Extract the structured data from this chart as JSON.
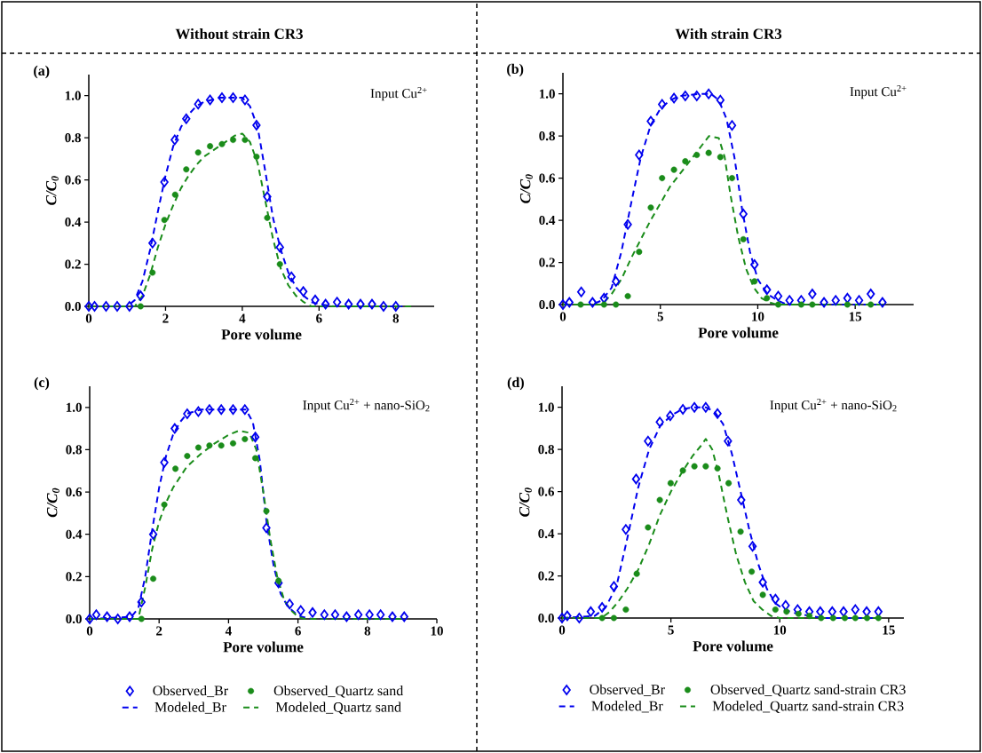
{
  "chart_data": [
    {
      "type": "scatter",
      "title": "Without strain CR3",
      "xlabel": "Pore volume",
      "ylabel": "C/C$_{0}$",
      "annotations": [
        "(a)",
        "Input Cu$^{2+}$"
      ],
      "xlim": [
        0,
        9
      ],
      "ylim": [
        0,
        1.1
      ],
      "xticks": [
        0,
        2,
        4,
        6,
        8
      ],
      "yticks": [
        {
          "value": 0,
          "label": "0.0"
        },
        {
          "value": 0.2,
          "label": "0.2"
        },
        {
          "value": 0.4,
          "label": "0.4"
        },
        {
          "value": 0.6,
          "label": "0.6"
        },
        {
          "value": 0.8,
          "label": "0.8"
        },
        {
          "value": 1.0,
          "label": "1.0"
        }
      ],
      "series": [
        {
          "color": "#0000ee",
          "marker": "diamond",
          "x": [
            0,
            0.15,
            0.45,
            0.74,
            1.06,
            1.35,
            1.66,
            1.97,
            2.24,
            2.54,
            2.85,
            3.16,
            3.47,
            3.76,
            4.07,
            4.37,
            4.65,
            4.98,
            5.28,
            5.59,
            5.9,
            6.17,
            6.47,
            6.77,
            7.08,
            7.38,
            7.68,
            8.0
          ],
          "values": [
            0,
            0,
            0,
            0,
            0,
            0.05,
            0.3,
            0.59,
            0.79,
            0.89,
            0.96,
            0.98,
            0.99,
            0.99,
            0.98,
            0.86,
            0.52,
            0.28,
            0.14,
            0.07,
            0.03,
            0.01,
            0.02,
            0.01,
            0.01,
            0.01,
            0,
            0
          ]
        },
        {
          "color": "#1a8c1a",
          "marker": "circle",
          "x": [
            1.35,
            1.66,
            1.97,
            2.25,
            2.54,
            2.85,
            3.16,
            3.47,
            3.76,
            4.07,
            4.37,
            4.65,
            4.98
          ],
          "values": [
            0,
            0.16,
            0.41,
            0.53,
            0.65,
            0.73,
            0.76,
            0.77,
            0.79,
            0.79,
            0.71,
            0.42,
            0.2
          ]
        },
        {
          "color": "#0000ee",
          "type": "line",
          "line_style": "dashed",
          "x": [
            0,
            1.0,
            1.2,
            1.4,
            1.6,
            1.8,
            2.0,
            2.2,
            2.4,
            2.6,
            2.8,
            3.0,
            3.4,
            4.0,
            4.2,
            4.4,
            4.6,
            4.8,
            5.0,
            5.2,
            5.4,
            5.6,
            5.8,
            6.0,
            6.4,
            8.3
          ],
          "values": [
            0,
            0,
            0.03,
            0.12,
            0.27,
            0.45,
            0.62,
            0.76,
            0.85,
            0.91,
            0.95,
            0.97,
            0.99,
            0.99,
            0.95,
            0.85,
            0.64,
            0.42,
            0.27,
            0.16,
            0.09,
            0.05,
            0.02,
            0.01,
            0,
            0
          ]
        },
        {
          "color": "#1a8c1a",
          "type": "line",
          "line_style": "dashed",
          "x": [
            0,
            1.2,
            1.4,
            1.6,
            1.8,
            2.0,
            2.2,
            2.4,
            2.6,
            2.8,
            3.0,
            3.4,
            3.8,
            4.0,
            4.2,
            4.4,
            4.6,
            4.8,
            5.0,
            5.2,
            5.4,
            5.6,
            5.8,
            8.4
          ],
          "values": [
            0,
            0,
            0.05,
            0.15,
            0.28,
            0.39,
            0.48,
            0.56,
            0.62,
            0.67,
            0.71,
            0.76,
            0.81,
            0.82,
            0.78,
            0.68,
            0.5,
            0.32,
            0.18,
            0.1,
            0.05,
            0.02,
            0,
            0
          ]
        }
      ]
    },
    {
      "type": "scatter",
      "title": "With strain CR3",
      "xlabel": "Pore volume",
      "ylabel": "C/C$_{0}$",
      "annotations": [
        "(b)",
        "Input Cu$^{2+}$"
      ],
      "xlim": [
        0,
        18
      ],
      "ylim": [
        0,
        1.1
      ],
      "xticks": [
        0,
        5,
        10,
        15
      ],
      "yticks": [
        {
          "value": 0,
          "label": "0.0"
        },
        {
          "value": 0.2,
          "label": "0.2"
        },
        {
          "value": 0.4,
          "label": "0.4"
        },
        {
          "value": 0.6,
          "label": "0.6"
        },
        {
          "value": 0.8,
          "label": "0.8"
        },
        {
          "value": 1.0,
          "label": "1.0"
        }
      ],
      "series": [
        {
          "color": "#0000ee",
          "marker": "diamond",
          "x": [
            0,
            0.33,
            0.94,
            1.52,
            2.11,
            2.72,
            3.33,
            3.91,
            4.51,
            5.09,
            5.7,
            6.28,
            6.87,
            7.48,
            8.08,
            8.68,
            9.26,
            9.83,
            10.47,
            11.05,
            11.63,
            12.23,
            12.8,
            13.4,
            14.0,
            14.6,
            15.2,
            15.8,
            16.4
          ],
          "values": [
            0,
            0.01,
            0.06,
            0.01,
            0.03,
            0.11,
            0.38,
            0.71,
            0.87,
            0.95,
            0.98,
            0.99,
            0.99,
            1.0,
            0.97,
            0.85,
            0.43,
            0.19,
            0.07,
            0.04,
            0.02,
            0.02,
            0.05,
            0.01,
            0.02,
            0.03,
            0.02,
            0.05,
            0.01
          ]
        },
        {
          "color": "#1a8c1a",
          "marker": "circle",
          "x": [
            0.91,
            2.11,
            2.72,
            3.33,
            3.91,
            4.51,
            5.09,
            5.7,
            6.28,
            6.87,
            7.48,
            8.08,
            8.68,
            9.26,
            9.83,
            10.47,
            11.05,
            12.23,
            12.8,
            14.6,
            15.8
          ],
          "values": [
            0,
            0,
            0,
            0.04,
            0.25,
            0.46,
            0.6,
            0.64,
            0.68,
            0.71,
            0.72,
            0.7,
            0.6,
            0.31,
            0.11,
            0.03,
            0,
            0,
            0,
            0,
            0
          ]
        },
        {
          "color": "#0000ee",
          "type": "line",
          "line_style": "dashed",
          "x": [
            0,
            1.5,
            2.0,
            2.5,
            3.0,
            3.5,
            4.0,
            4.5,
            5.0,
            5.5,
            6.0,
            7.0,
            7.6,
            8.0,
            8.4,
            8.8,
            9.2,
            9.6,
            10.0,
            10.5,
            11.0,
            11.5,
            16.5
          ],
          "values": [
            0,
            0,
            0.02,
            0.08,
            0.25,
            0.48,
            0.7,
            0.85,
            0.93,
            0.97,
            0.99,
            1.0,
            1.0,
            0.97,
            0.88,
            0.7,
            0.45,
            0.25,
            0.12,
            0.05,
            0.02,
            0,
            0
          ]
        },
        {
          "color": "#1a8c1a",
          "type": "line",
          "line_style": "dashed",
          "x": [
            0,
            2.0,
            2.5,
            3.0,
            3.5,
            4.0,
            4.5,
            5.0,
            5.5,
            6.0,
            6.5,
            7.0,
            7.5,
            8.0,
            8.3,
            8.6,
            9.0,
            9.4,
            9.8,
            10.2,
            10.6,
            11.0,
            16.5
          ],
          "values": [
            0,
            0,
            0.05,
            0.12,
            0.22,
            0.31,
            0.4,
            0.48,
            0.56,
            0.62,
            0.68,
            0.74,
            0.8,
            0.79,
            0.7,
            0.52,
            0.32,
            0.17,
            0.08,
            0.03,
            0.01,
            0,
            0
          ]
        }
      ]
    },
    {
      "type": "scatter",
      "xlabel": "Pore volume",
      "ylabel": "C/C$_{0}$",
      "annotations": [
        "(c)",
        "Input Cu$^{2+}$ + nano-SiO$_{2}$"
      ],
      "xlim": [
        0,
        10
      ],
      "ylim": [
        0,
        1.1
      ],
      "xticks": [
        0,
        2,
        4,
        6,
        8,
        10
      ],
      "yticks": [
        {
          "value": 0,
          "label": "0.0"
        },
        {
          "value": 0.2,
          "label": "0.2"
        },
        {
          "value": 0.4,
          "label": "0.4"
        },
        {
          "value": 0.6,
          "label": "0.6"
        },
        {
          "value": 0.8,
          "label": "0.8"
        },
        {
          "value": 1.0,
          "label": "1.0"
        }
      ],
      "legend": "bottom",
      "series": [
        {
          "name": "Observed_Br",
          "color": "#0000ee",
          "marker": "diamond",
          "x": [
            0,
            0.19,
            0.5,
            0.81,
            1.15,
            1.49,
            1.83,
            2.15,
            2.45,
            2.81,
            3.13,
            3.45,
            3.79,
            4.13,
            4.47,
            4.77,
            5.09,
            5.44,
            5.76,
            6.08,
            6.42,
            6.76,
            7.07,
            7.4,
            7.74,
            8.06,
            8.38,
            8.72,
            9.06
          ],
          "values": [
            0,
            0.02,
            0.01,
            0,
            0.01,
            0.08,
            0.4,
            0.74,
            0.9,
            0.97,
            0.98,
            0.99,
            0.99,
            0.99,
            0.99,
            0.86,
            0.43,
            0.17,
            0.07,
            0.04,
            0.03,
            0.02,
            0.02,
            0.01,
            0.02,
            0.02,
            0.02,
            0.01,
            0.01
          ]
        },
        {
          "name": "Observed_Quartz sand",
          "color": "#1a8c1a",
          "marker": "circle",
          "x": [
            1.49,
            1.83,
            2.15,
            2.47,
            2.81,
            3.13,
            3.45,
            3.79,
            4.13,
            4.47,
            4.77,
            5.09,
            5.44
          ],
          "values": [
            0,
            0.19,
            0.54,
            0.71,
            0.77,
            0.81,
            0.82,
            0.82,
            0.83,
            0.85,
            0.76,
            0.51,
            0.18
          ]
        },
        {
          "name": "Modeled_Br",
          "color": "#0000ee",
          "type": "line",
          "line_style": "dashed",
          "x": [
            0,
            1.2,
            1.4,
            1.6,
            1.8,
            2.0,
            2.2,
            2.4,
            2.6,
            2.8,
            3.2,
            4.5,
            4.7,
            4.9,
            5.1,
            5.3,
            5.5,
            5.7,
            5.9,
            6.1,
            6.4,
            9.1
          ],
          "values": [
            0,
            0.01,
            0.05,
            0.2,
            0.42,
            0.62,
            0.77,
            0.87,
            0.93,
            0.97,
            0.99,
            0.99,
            0.93,
            0.75,
            0.45,
            0.25,
            0.12,
            0.06,
            0.03,
            0.01,
            0,
            0
          ]
        },
        {
          "name": "Modeled_Quartz sand",
          "color": "#1a8c1a",
          "type": "line",
          "line_style": "dashed",
          "x": [
            0,
            1.4,
            1.6,
            1.8,
            2.0,
            2.2,
            2.4,
            2.6,
            2.8,
            3.2,
            3.6,
            4.0,
            4.3,
            4.6,
            4.8,
            5.0,
            5.2,
            5.4,
            5.6,
            5.8,
            6.0,
            6.2,
            9.1
          ],
          "values": [
            0,
            0,
            0.15,
            0.33,
            0.46,
            0.55,
            0.62,
            0.67,
            0.72,
            0.78,
            0.83,
            0.87,
            0.89,
            0.88,
            0.8,
            0.6,
            0.38,
            0.2,
            0.09,
            0.04,
            0.01,
            0,
            0
          ]
        }
      ]
    },
    {
      "type": "scatter",
      "xlabel": "Pore volume",
      "ylabel": "C/C$_{0}$",
      "annotations": [
        "(d)",
        "Input Cu$^{2+}$ + nano-SiO$_{2}$"
      ],
      "xlim": [
        0,
        15.7
      ],
      "ylim": [
        0,
        1.1
      ],
      "xticks": [
        0,
        5,
        10,
        15
      ],
      "yticks": [
        {
          "value": 0,
          "label": "0.0"
        },
        {
          "value": 0.2,
          "label": "0.2"
        },
        {
          "value": 0.4,
          "label": "0.4"
        },
        {
          "value": 0.6,
          "label": "0.6"
        },
        {
          "value": 0.8,
          "label": "0.8"
        },
        {
          "value": 1.0,
          "label": "1.0"
        }
      ],
      "legend": "bottom",
      "series": [
        {
          "name": "Observed_Br",
          "color": "#0000ee",
          "marker": "diamond",
          "x": [
            0,
            0.24,
            0.79,
            1.32,
            1.84,
            2.38,
            2.93,
            3.4,
            3.95,
            4.49,
            4.97,
            5.55,
            6.08,
            6.6,
            7.14,
            7.62,
            8.23,
            8.75,
            9.22,
            9.8,
            10.27,
            10.82,
            11.36,
            11.86,
            12.41,
            12.93,
            13.47,
            13.99,
            14.53
          ],
          "values": [
            0,
            0.01,
            0,
            0.03,
            0.05,
            0.15,
            0.42,
            0.66,
            0.84,
            0.93,
            0.96,
            0.99,
            1.0,
            1.0,
            0.97,
            0.84,
            0.56,
            0.34,
            0.17,
            0.09,
            0.06,
            0.04,
            0.03,
            0.03,
            0.03,
            0.03,
            0.04,
            0.03,
            0.03
          ]
        },
        {
          "name": "Observed_Quartz sand-strain CR3",
          "color": "#1a8c1a",
          "marker": "circle",
          "x": [
            1.84,
            2.38,
            2.93,
            3.43,
            3.95,
            4.49,
            4.99,
            5.55,
            6.08,
            6.6,
            7.14,
            7.65,
            8.2,
            8.71,
            9.22,
            9.8,
            10.31,
            10.86,
            11.36,
            11.9,
            12.45,
            12.99,
            13.47,
            14.01,
            14.53
          ],
          "values": [
            0,
            0,
            0.04,
            0.21,
            0.43,
            0.56,
            0.64,
            0.7,
            0.72,
            0.72,
            0.71,
            0.64,
            0.41,
            0.22,
            0.11,
            0.04,
            0.03,
            0.02,
            0.01,
            0,
            0,
            0,
            0,
            0,
            0
          ]
        },
        {
          "name": "Modeled_Br",
          "color": "#0000ee",
          "type": "line",
          "line_style": "dashed",
          "x": [
            0,
            1.5,
            2.0,
            2.5,
            3.0,
            3.5,
            4.0,
            4.5,
            5.0,
            5.5,
            6.0,
            6.6,
            7.0,
            7.4,
            7.8,
            8.2,
            8.6,
            9.0,
            9.4,
            9.8,
            10.2,
            10.8,
            11.4,
            12.0,
            14.6
          ],
          "values": [
            0,
            0.01,
            0.05,
            0.15,
            0.38,
            0.62,
            0.8,
            0.91,
            0.96,
            0.99,
            1.0,
            1.0,
            0.98,
            0.92,
            0.78,
            0.6,
            0.42,
            0.26,
            0.14,
            0.07,
            0.04,
            0.02,
            0.01,
            0,
            0
          ]
        },
        {
          "name": "Modeled_Quartz sand-strain CR3",
          "color": "#1a8c1a",
          "type": "line",
          "line_style": "dashed",
          "x": [
            0,
            1.8,
            2.2,
            2.6,
            3.0,
            3.5,
            4.0,
            4.5,
            5.0,
            5.5,
            6.0,
            6.4,
            6.6,
            6.9,
            7.2,
            7.6,
            8.0,
            8.4,
            8.8,
            9.2,
            9.6,
            10.0,
            14.6
          ],
          "values": [
            0,
            0,
            0.03,
            0.08,
            0.14,
            0.23,
            0.35,
            0.49,
            0.6,
            0.69,
            0.77,
            0.82,
            0.85,
            0.8,
            0.68,
            0.48,
            0.3,
            0.17,
            0.08,
            0.04,
            0.01,
            0,
            0
          ]
        }
      ]
    }
  ]
}
